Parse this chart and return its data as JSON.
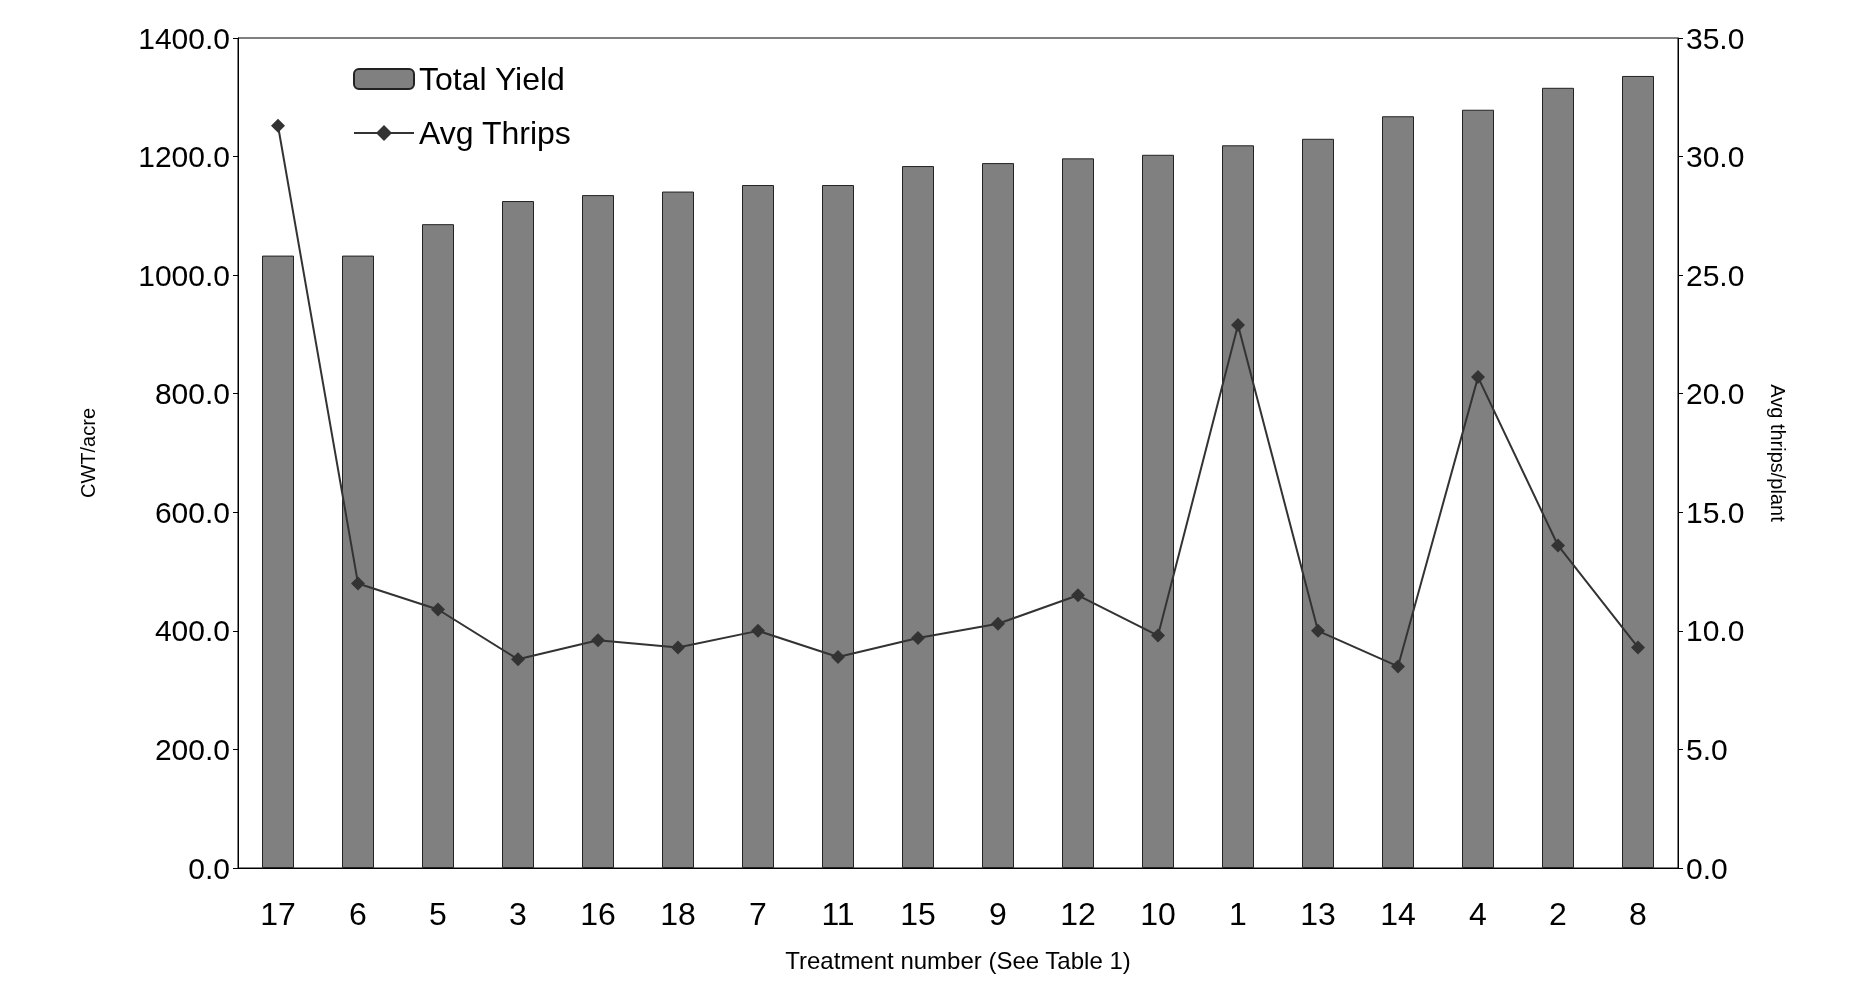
{
  "chart_data": {
    "type": "bar",
    "xlabel": "Treatment number (See Table 1)",
    "ylabel": "CWT/acre",
    "y2label": "Avg thrips/plant",
    "categories": [
      "17",
      "6",
      "5",
      "3",
      "16",
      "18",
      "7",
      "11",
      "15",
      "9",
      "12",
      "10",
      "1",
      "13",
      "14",
      "4",
      "2",
      "8"
    ],
    "series": [
      {
        "name": "Total Yield",
        "color": "#808080",
        "values": [
          1033,
          1033,
          1086,
          1125,
          1135,
          1141,
          1152,
          1152,
          1184,
          1189,
          1197,
          1203,
          1219,
          1230,
          1268,
          1279,
          1316,
          1336
        ]
      },
      {
        "name": "Avg Thrips",
        "type": "line",
        "axis": "y2",
        "color": "#333333",
        "marker": "diamond",
        "values": [
          31.3,
          12.0,
          10.9,
          8.8,
          9.6,
          9.3,
          10.0,
          8.9,
          9.7,
          10.3,
          11.5,
          9.8,
          22.9,
          10.0,
          8.5,
          20.7,
          13.6,
          9.3
        ]
      }
    ],
    "ylim": [
      0,
      1400
    ],
    "yticks": [
      {
        "value": 0,
        "label": "0.0"
      },
      {
        "value": 200,
        "label": "200.0"
      },
      {
        "value": 400,
        "label": "400.0"
      },
      {
        "value": 600,
        "label": "600.0"
      },
      {
        "value": 800,
        "label": "800.0"
      },
      {
        "value": 1000,
        "label": "1000.0"
      },
      {
        "value": 1200,
        "label": "1200.0"
      },
      {
        "value": 1400,
        "label": "1400.0"
      }
    ],
    "y2lim": [
      0,
      35
    ],
    "y2ticks": [
      {
        "value": 0,
        "label": "0.0"
      },
      {
        "value": 5,
        "label": "5.0"
      },
      {
        "value": 10,
        "label": "10.0"
      },
      {
        "value": 15,
        "label": "15.0"
      },
      {
        "value": 20,
        "label": "20.0"
      },
      {
        "value": 25,
        "label": "25.0"
      },
      {
        "value": 30,
        "label": "30.0"
      },
      {
        "value": 35,
        "label": "35.0"
      }
    ],
    "grid": false,
    "legend": "top left"
  }
}
